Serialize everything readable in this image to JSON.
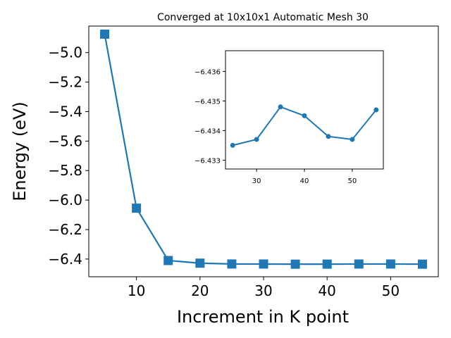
{
  "chart_data": [
    {
      "type": "line",
      "title": "Converged at 10x10x1 Automatic Mesh 30",
      "xlabel": "Increment in K point",
      "ylabel": "Energy (eV)",
      "x": [
        5,
        10,
        15,
        20,
        25,
        30,
        35,
        40,
        45,
        50,
        55
      ],
      "series": [
        {
          "values": [
            -4.875,
            -6.055,
            -6.41,
            -6.428,
            -6.4335,
            -6.4337,
            -6.4348,
            -6.4345,
            -6.4338,
            -6.4337,
            -6.4347
          ],
          "marker": "square",
          "color": "#1f77b4"
        }
      ],
      "xlim": [
        2.5,
        57.5
      ],
      "ylim": [
        -6.52,
        -4.82
      ],
      "xticks": [
        10,
        20,
        30,
        40,
        50
      ],
      "xtick_labels": [
        "10",
        "20",
        "30",
        "40",
        "50"
      ],
      "yticks": [
        -5.0,
        -5.2,
        -5.4,
        -5.6,
        -5.8,
        -6.0,
        -6.2,
        -6.4
      ],
      "ytick_labels": [
        "−5.0",
        "−5.2",
        "−5.4",
        "−5.6",
        "−5.8",
        "−6.0",
        "−6.2",
        "−6.4"
      ],
      "grid": false
    },
    {
      "type": "line",
      "inset": true,
      "x": [
        25,
        30,
        35,
        40,
        45,
        50,
        55
      ],
      "series": [
        {
          "values": [
            -6.4335,
            -6.4337,
            -6.4348,
            -6.4345,
            -6.4338,
            -6.4337,
            -6.4347
          ],
          "marker": "circle",
          "color": "#1f77b4"
        }
      ],
      "xlim": [
        23.5,
        56.5
      ],
      "yscale_note": "y axis drawn so -6.436 is at top and -6.433 near bottom",
      "ylim": [
        -6.4367,
        -6.4327
      ],
      "xticks": [
        30,
        40,
        50
      ],
      "xtick_labels": [
        "30",
        "40",
        "50"
      ],
      "yticks": [
        -6.436,
        -6.435,
        -6.434,
        -6.433
      ],
      "ytick_labels": [
        "−6.436",
        "−6.435",
        "−6.434",
        "−6.433"
      ],
      "grid": false
    }
  ]
}
